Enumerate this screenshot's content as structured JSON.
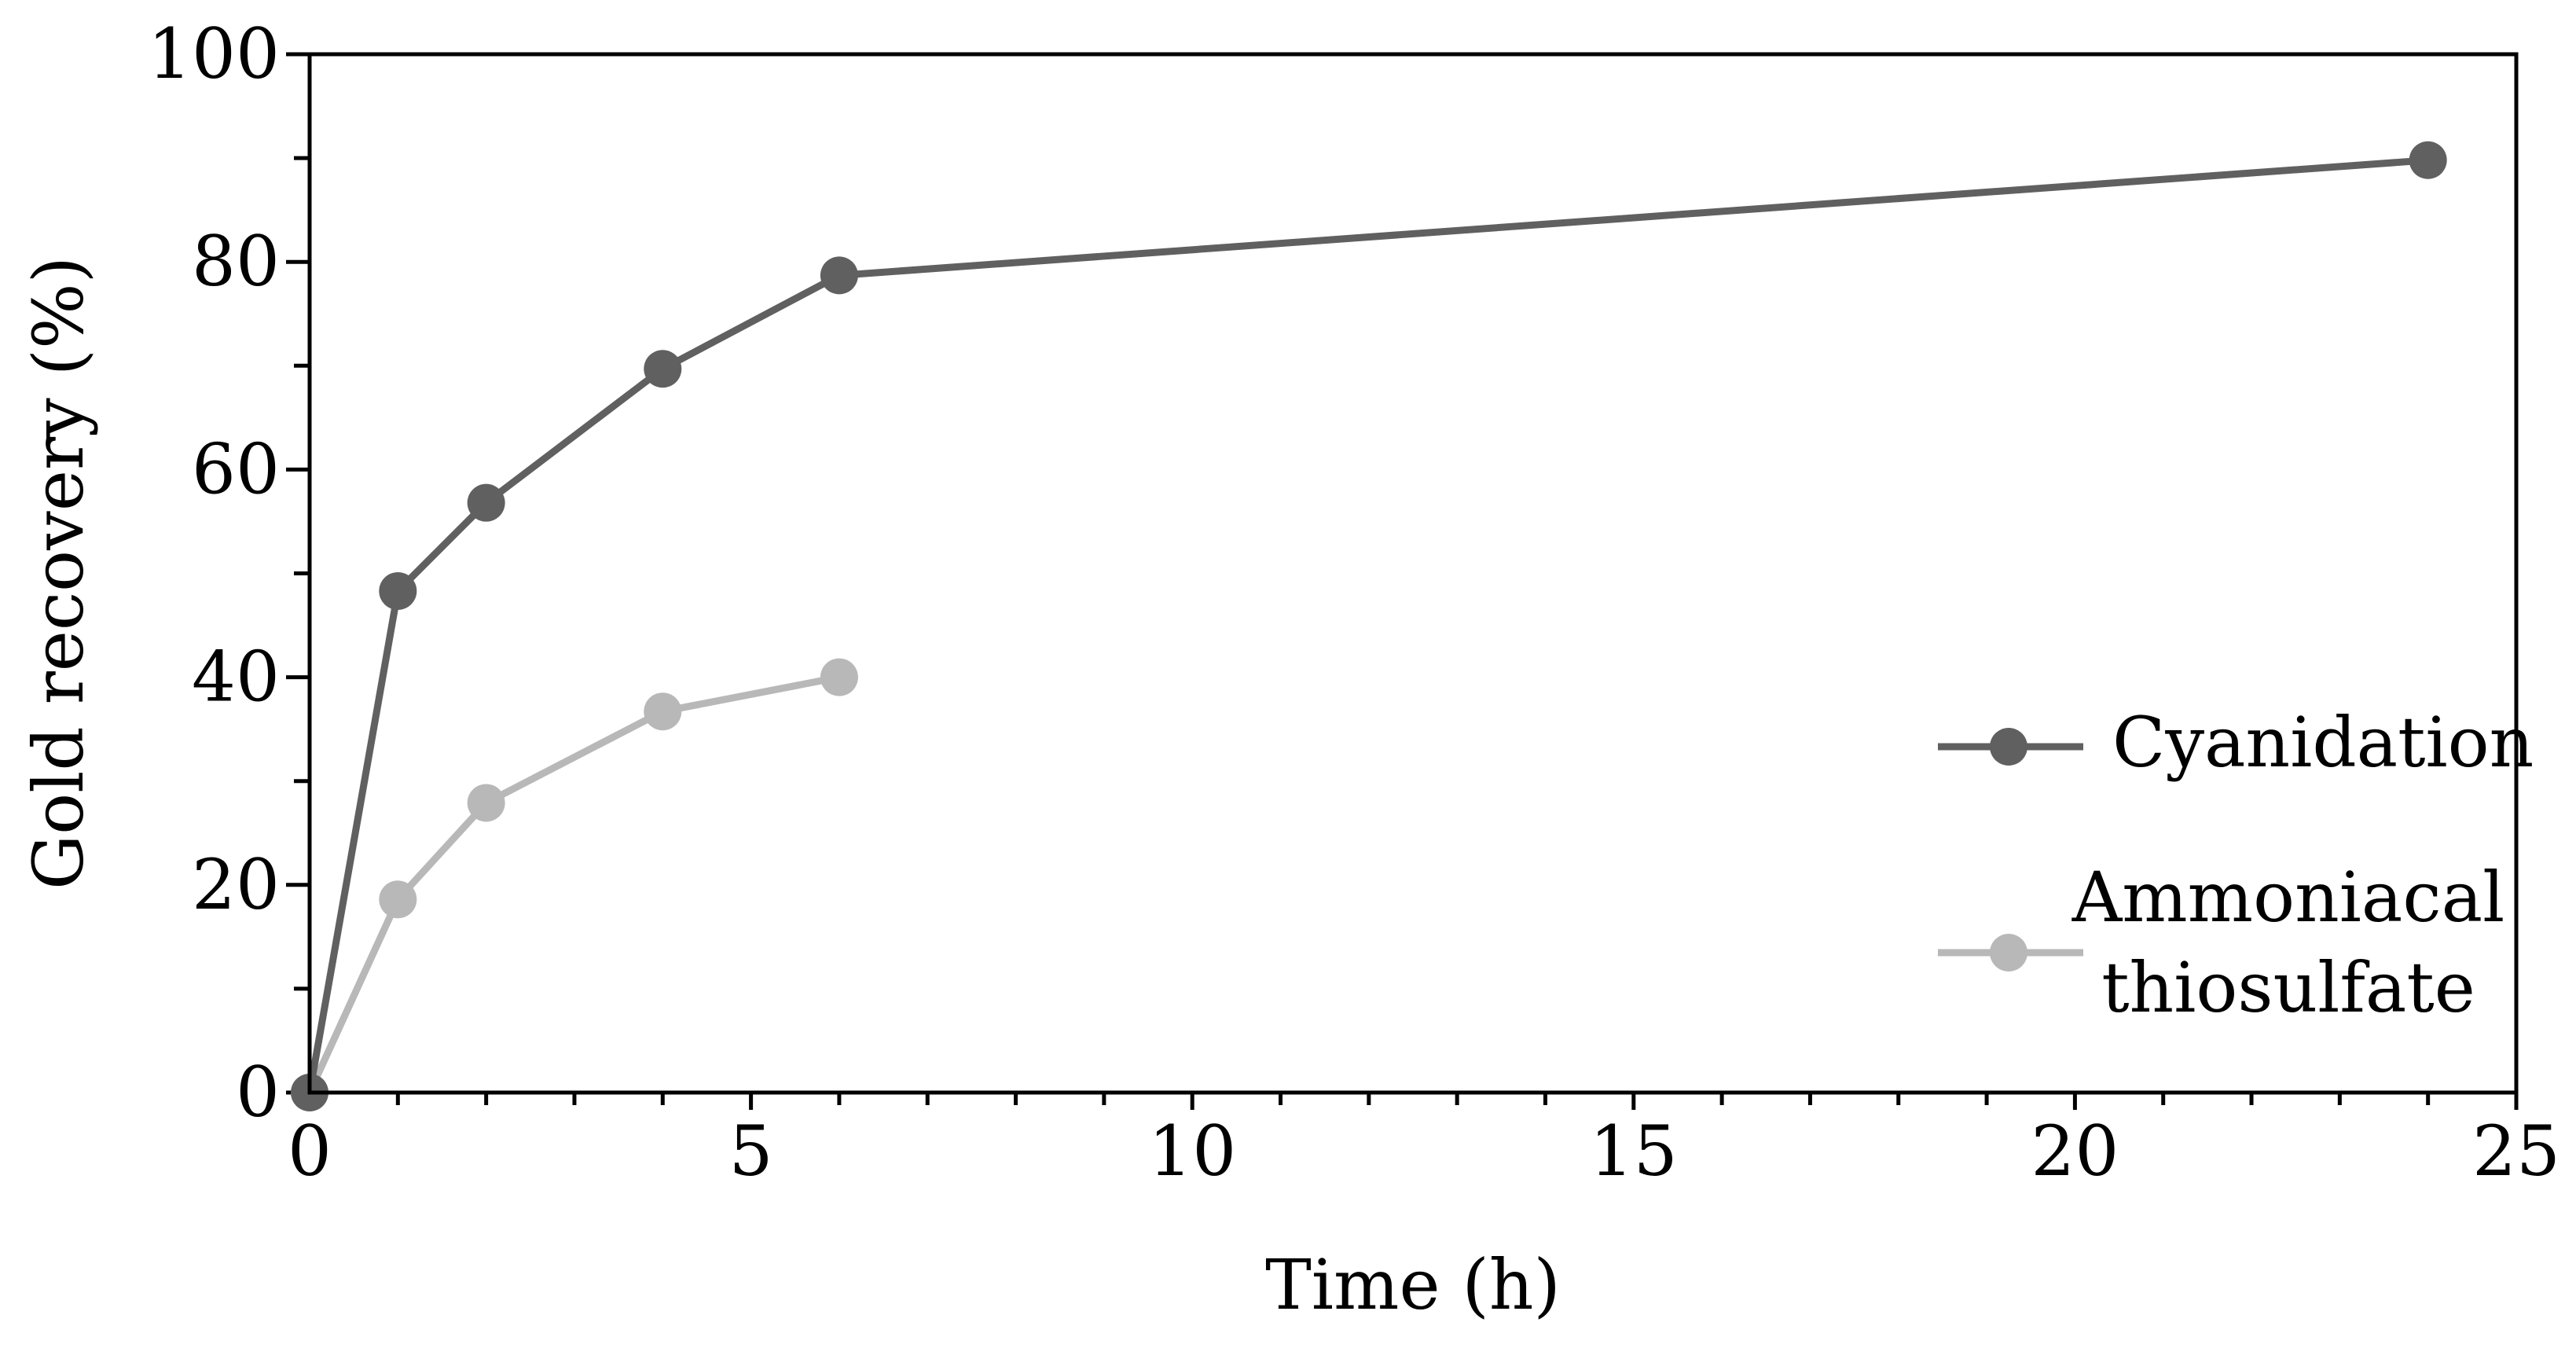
{
  "chart_data": {
    "type": "line",
    "title": "",
    "xlabel": "Time (h)",
    "ylabel": "Gold recovery (%)",
    "xlim": [
      0,
      25
    ],
    "ylim": [
      0,
      100
    ],
    "xticks": [
      0,
      5,
      10,
      15,
      20,
      25
    ],
    "yticks": [
      0,
      20,
      40,
      60,
      80,
      100
    ],
    "grid": false,
    "legend_position": "right",
    "series": [
      {
        "name": "Cyanidation",
        "name_lines": [
          "Cyanidation"
        ],
        "color": "#606060",
        "x": [
          0,
          1,
          2,
          4,
          6,
          24
        ],
        "y": [
          0,
          48.3,
          56.8,
          69.7,
          78.7,
          89.8
        ]
      },
      {
        "name": "Ammoniacal thiosulfate",
        "name_lines": [
          "Ammoniacal",
          "thiosulfate"
        ],
        "color": "#b8b8b8",
        "x": [
          0,
          1,
          2,
          4,
          6
        ],
        "y": [
          0,
          18.6,
          27.9,
          36.7,
          40.0
        ]
      }
    ]
  }
}
